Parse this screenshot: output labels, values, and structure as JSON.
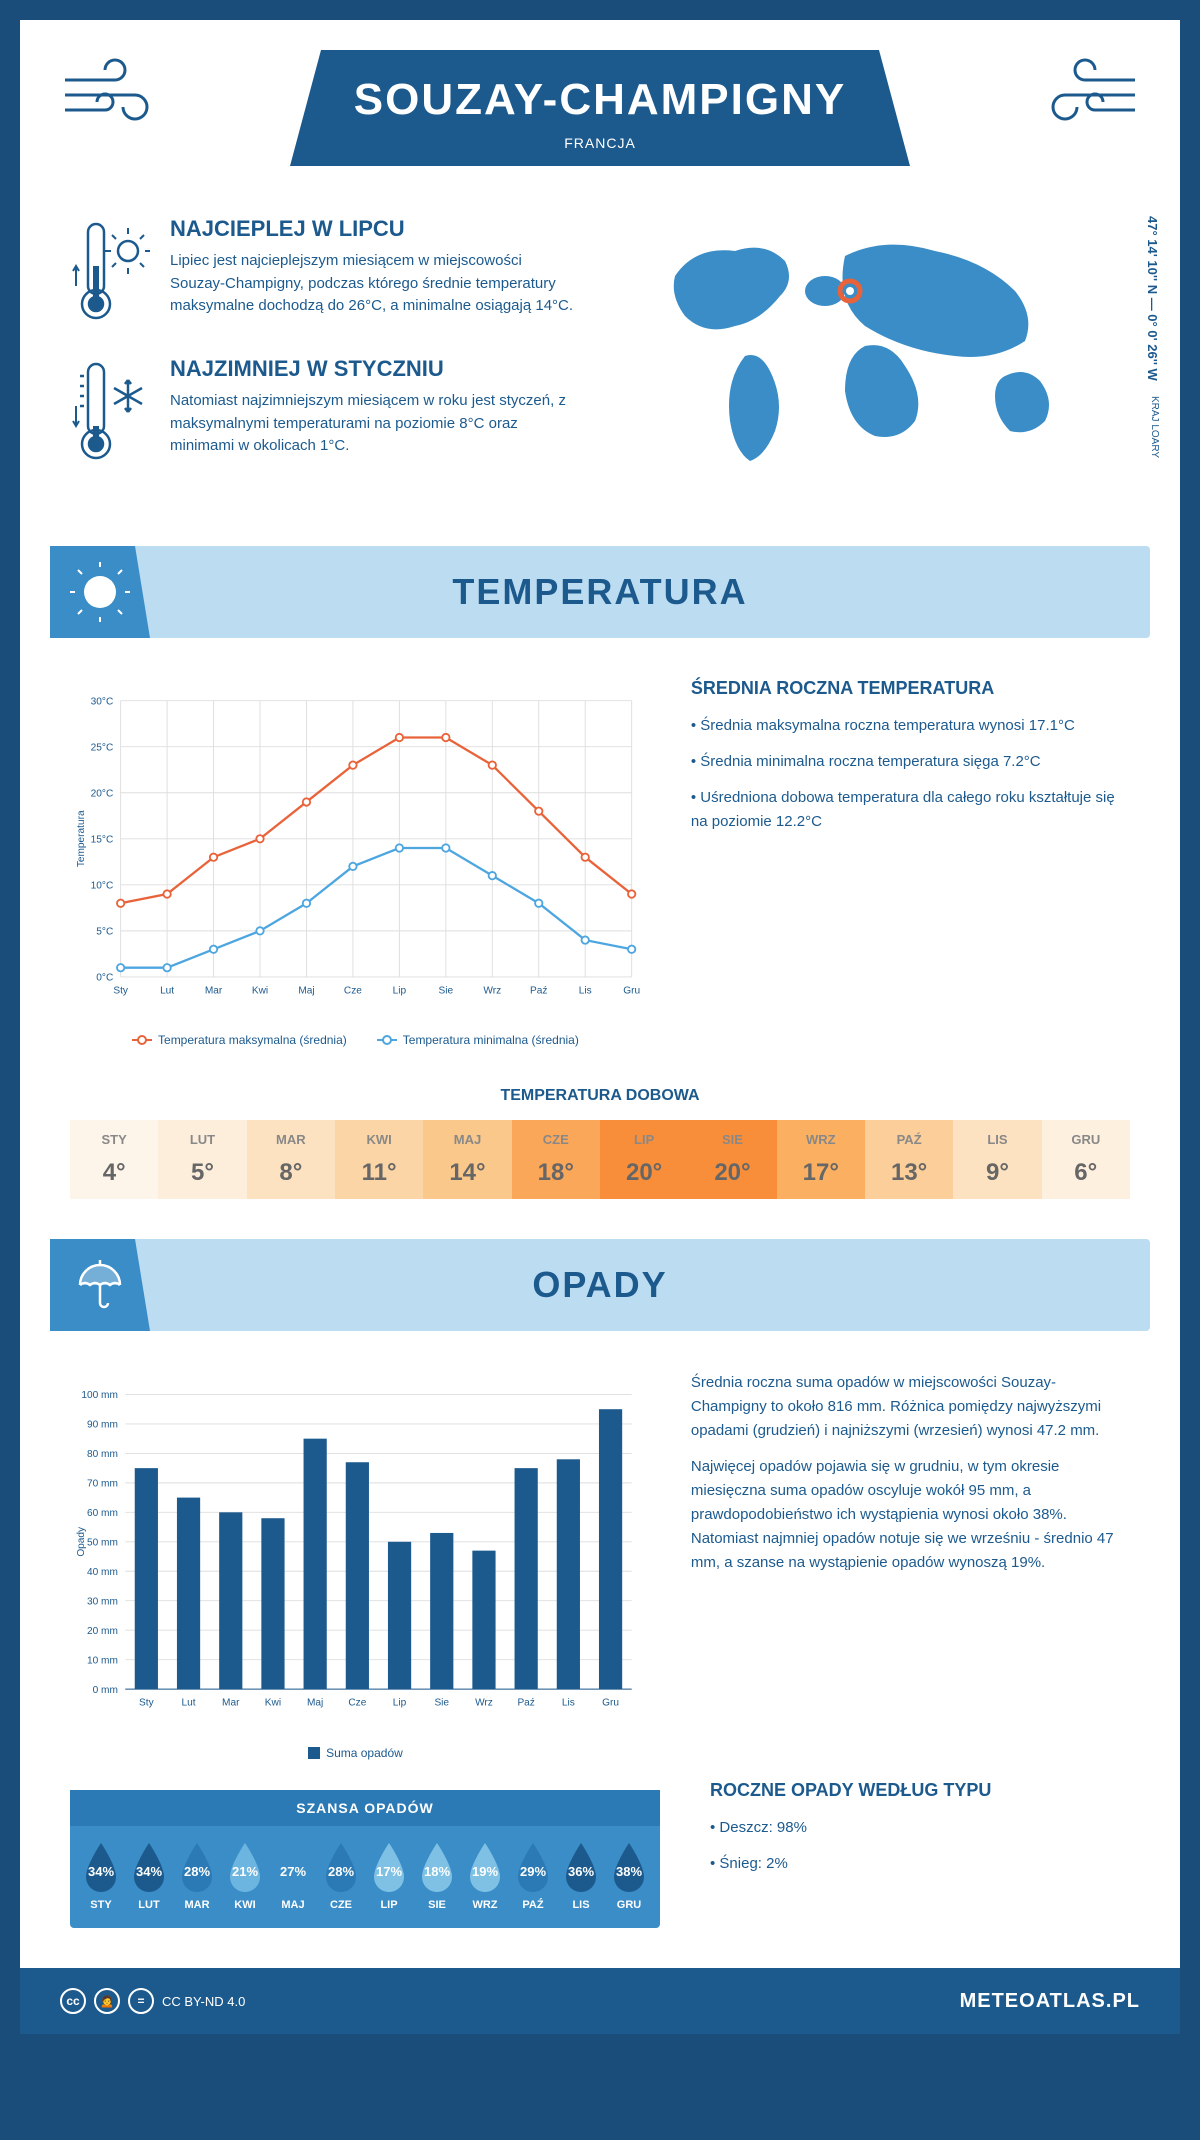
{
  "header": {
    "title": "SOUZAY-CHAMPIGNY",
    "subtitle": "FRANCJA",
    "coords": "47° 14' 10'' N — 0° 0' 26'' W",
    "region": "KRAJ LOARY"
  },
  "intro": {
    "hot": {
      "title": "NAJCIEPLEJ W LIPCU",
      "text": "Lipiec jest najcieplejszym miesiącem w miejscowości Souzay-Champigny, podczas którego średnie temperatury maksymalne dochodzą do 26°C, a minimalne osiągają 14°C."
    },
    "cold": {
      "title": "NAJZIMNIEJ W STYCZNIU",
      "text": "Natomiast najzimniejszym miesiącem w roku jest styczeń, z maksymalnymi temperaturami na poziomie 8°C oraz minimami w okolicach 1°C."
    }
  },
  "temperature": {
    "section_title": "TEMPERATURA",
    "chart": {
      "type": "line",
      "months": [
        "Sty",
        "Lut",
        "Mar",
        "Kwi",
        "Maj",
        "Cze",
        "Lip",
        "Sie",
        "Wrz",
        "Paź",
        "Lis",
        "Gru"
      ],
      "max_series": [
        8,
        9,
        13,
        15,
        19,
        23,
        26,
        26,
        23,
        18,
        13,
        9
      ],
      "min_series": [
        1,
        1,
        3,
        5,
        8,
        12,
        14,
        14,
        11,
        8,
        4,
        3
      ],
      "max_color": "#e8633a",
      "min_color": "#4da6e0",
      "ylabel": "Temperatura",
      "ylim": [
        0,
        30
      ],
      "ytick_step": 5,
      "grid_color": "#dddddd",
      "legend_max": "Temperatura maksymalna (średnia)",
      "legend_min": "Temperatura minimalna (średnia)"
    },
    "stats": {
      "title": "ŚREDNIA ROCZNA TEMPERATURA",
      "items": [
        "Średnia maksymalna roczna temperatura wynosi 17.1°C",
        "Średnia minimalna roczna temperatura sięga 7.2°C",
        "Uśredniona dobowa temperatura dla całego roku kształtuje się na poziomie 12.2°C"
      ]
    },
    "daily": {
      "title": "TEMPERATURA DOBOWA",
      "months": [
        "STY",
        "LUT",
        "MAR",
        "KWI",
        "MAJ",
        "CZE",
        "LIP",
        "SIE",
        "WRZ",
        "PAŹ",
        "LIS",
        "GRU"
      ],
      "values": [
        "4°",
        "5°",
        "8°",
        "11°",
        "14°",
        "18°",
        "20°",
        "20°",
        "17°",
        "13°",
        "9°",
        "6°"
      ],
      "colors": [
        "#fef5ea",
        "#fdeedb",
        "#fde2c1",
        "#fcd5a6",
        "#fbc88b",
        "#faa75a",
        "#f98e3a",
        "#f98e3a",
        "#fab060",
        "#fcce99",
        "#fde2c1",
        "#fef0df"
      ]
    }
  },
  "precipitation": {
    "section_title": "OPADY",
    "chart": {
      "type": "bar",
      "months": [
        "Sty",
        "Lut",
        "Mar",
        "Kwi",
        "Maj",
        "Cze",
        "Lip",
        "Sie",
        "Wrz",
        "Paź",
        "Lis",
        "Gru"
      ],
      "values": [
        75,
        65,
        60,
        58,
        85,
        77,
        50,
        53,
        47,
        75,
        78,
        95
      ],
      "bar_color": "#1c5a8e",
      "ylabel": "Opady",
      "ylim": [
        0,
        100
      ],
      "ytick_step": 10,
      "y_unit": "mm",
      "legend": "Suma opadów",
      "grid_color": "#dddddd"
    },
    "text1": "Średnia roczna suma opadów w miejscowości Souzay-Champigny to około 816 mm. Różnica pomiędzy najwyższymi opadami (grudzień) i najniższymi (wrzesień) wynosi 47.2 mm.",
    "text2": "Najwięcej opadów pojawia się w grudniu, w tym okresie miesięczna suma opadów oscyluje wokół 95 mm, a prawdopodobieństwo ich wystąpienia wynosi około 38%. Natomiast najmniej opadów notuje się we wrześniu - średnio 47 mm, a szanse na wystąpienie opadów wynoszą 19%.",
    "chance": {
      "title": "SZANSA OPADÓW",
      "months": [
        "STY",
        "LUT",
        "MAR",
        "KWI",
        "MAJ",
        "CZE",
        "LIP",
        "SIE",
        "WRZ",
        "PAŹ",
        "LIS",
        "GRU"
      ],
      "values": [
        "34%",
        "34%",
        "28%",
        "21%",
        "27%",
        "28%",
        "17%",
        "18%",
        "19%",
        "29%",
        "36%",
        "38%"
      ],
      "colors": [
        "#1c5a8e",
        "#1c5a8e",
        "#2c7ab5",
        "#6cb5e0",
        "#3a8dc7",
        "#2c7ab5",
        "#7fc0e5",
        "#7fc0e5",
        "#7fc0e5",
        "#2c7ab5",
        "#1c5a8e",
        "#1c5a8e"
      ]
    },
    "by_type": {
      "title": "ROCZNE OPADY WEDŁUG TYPU",
      "items": [
        "Deszcz: 98%",
        "Śnieg: 2%"
      ]
    }
  },
  "footer": {
    "license": "CC BY-ND 4.0",
    "brand": "METEOATLAS.PL"
  }
}
